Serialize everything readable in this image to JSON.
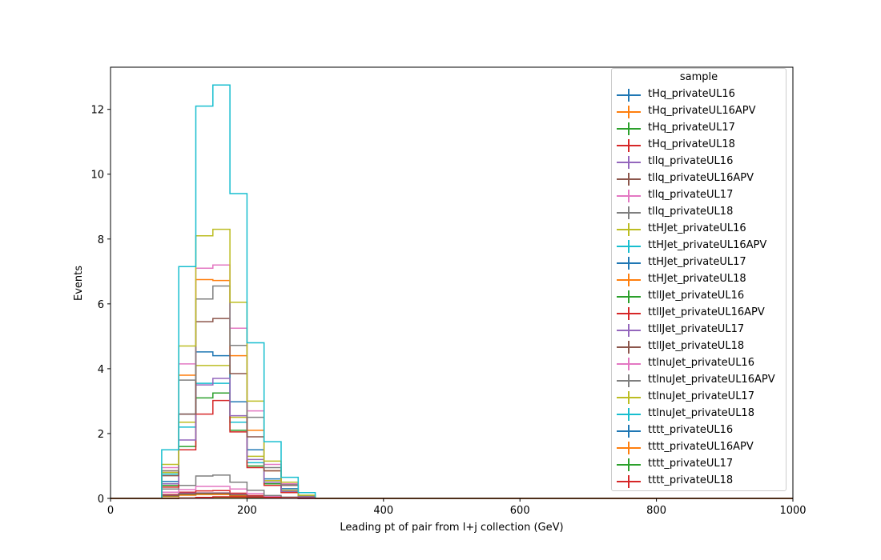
{
  "chart_data": {
    "type": "histogram",
    "xlabel": "Leading pt of pair from l+j collection (GeV)",
    "ylabel": "Events",
    "xlim": [
      0,
      1000
    ],
    "ylim": [
      0,
      13.3
    ],
    "x_ticks": [
      0,
      200,
      400,
      600,
      800,
      1000
    ],
    "y_ticks": [
      0,
      2,
      4,
      6,
      8,
      10,
      12
    ],
    "grid": false,
    "legend": {
      "title": "sample",
      "placement": "top-right"
    },
    "bin_edges": [
      75,
      100,
      125,
      150,
      175,
      200,
      225,
      250,
      275,
      300
    ],
    "series": [
      {
        "name": "tHq_privateUL16",
        "color": "#1f77b4",
        "values": [
          0.07,
          0.11,
          0.13,
          0.13,
          0.09,
          0.05,
          0.03,
          0.01,
          0.0
        ]
      },
      {
        "name": "tHq_privateUL16APV",
        "color": "#ff7f0e",
        "values": [
          0.06,
          0.1,
          0.12,
          0.12,
          0.08,
          0.05,
          0.02,
          0.01,
          0.0
        ]
      },
      {
        "name": "tHq_privateUL17",
        "color": "#2ca02c",
        "values": [
          0.08,
          0.13,
          0.15,
          0.16,
          0.11,
          0.06,
          0.03,
          0.01,
          0.0
        ]
      },
      {
        "name": "tHq_privateUL18",
        "color": "#d62728",
        "values": [
          0.12,
          0.19,
          0.23,
          0.24,
          0.16,
          0.09,
          0.04,
          0.02,
          0.0
        ]
      },
      {
        "name": "tllq_privateUL16",
        "color": "#9467bd",
        "values": [
          0.1,
          0.16,
          0.17,
          0.17,
          0.12,
          0.06,
          0.03,
          0.01,
          0.0
        ]
      },
      {
        "name": "tllq_privateUL16APV",
        "color": "#8c564b",
        "values": [
          0.09,
          0.14,
          0.16,
          0.16,
          0.11,
          0.06,
          0.03,
          0.01,
          0.0
        ]
      },
      {
        "name": "tllq_privateUL17",
        "color": "#e377c2",
        "values": [
          0.19,
          0.27,
          0.37,
          0.37,
          0.29,
          0.15,
          0.06,
          0.02,
          0.0
        ]
      },
      {
        "name": "tllq_privateUL18",
        "color": "#7f7f7f",
        "values": [
          0.29,
          0.4,
          0.69,
          0.72,
          0.5,
          0.25,
          0.09,
          0.04,
          0.01
        ]
      },
      {
        "name": "ttHJet_privateUL16",
        "color": "#bcbd22",
        "values": [
          0.8,
          2.35,
          4.1,
          4.1,
          2.5,
          1.3,
          0.55,
          0.25,
          0.05
        ]
      },
      {
        "name": "ttHJet_privateUL16APV",
        "color": "#17becf",
        "values": [
          0.75,
          2.2,
          3.55,
          3.55,
          2.35,
          1.1,
          0.45,
          0.2,
          0.04
        ]
      },
      {
        "name": "ttHJet_privateUL17",
        "color": "#1f77b4",
        "values": [
          0.52,
          2.6,
          4.52,
          4.4,
          2.98,
          1.5,
          0.6,
          0.3,
          0.06
        ]
      },
      {
        "name": "ttHJet_privateUL18",
        "color": "#ff7f0e",
        "values": [
          0.85,
          3.8,
          6.75,
          6.72,
          4.4,
          2.1,
          0.85,
          0.4,
          0.08
        ]
      },
      {
        "name": "ttllJet_privateUL16",
        "color": "#2ca02c",
        "values": [
          0.4,
          1.6,
          3.1,
          3.25,
          2.1,
          1.0,
          0.45,
          0.2,
          0.04
        ]
      },
      {
        "name": "ttllJet_privateUL16APV",
        "color": "#d62728",
        "values": [
          0.35,
          1.5,
          2.6,
          3.02,
          2.05,
          0.95,
          0.4,
          0.18,
          0.03
        ]
      },
      {
        "name": "ttllJet_privateUL17",
        "color": "#9467bd",
        "values": [
          0.45,
          1.8,
          3.5,
          3.7,
          2.55,
          1.2,
          0.5,
          0.22,
          0.05
        ]
      },
      {
        "name": "ttllJet_privateUL18",
        "color": "#8c564b",
        "values": [
          0.7,
          2.6,
          5.45,
          5.55,
          3.85,
          1.9,
          0.85,
          0.4,
          0.08
        ]
      },
      {
        "name": "ttlnuJet_privateUL16",
        "color": "#e377c2",
        "values": [
          0.95,
          4.15,
          7.1,
          7.2,
          5.25,
          2.7,
          1.05,
          0.45,
          0.09
        ]
      },
      {
        "name": "ttlnuJet_privateUL16APV",
        "color": "#7f7f7f",
        "values": [
          0.85,
          3.65,
          6.15,
          6.55,
          4.72,
          2.5,
          0.95,
          0.42,
          0.08
        ]
      },
      {
        "name": "ttlnuJet_privateUL17",
        "color": "#bcbd22",
        "values": [
          1.05,
          4.7,
          8.1,
          8.3,
          6.05,
          3.0,
          1.15,
          0.5,
          0.1
        ]
      },
      {
        "name": "ttlnuJet_privateUL18",
        "color": "#17becf",
        "values": [
          1.5,
          7.15,
          12.1,
          12.75,
          9.4,
          4.8,
          1.75,
          0.65,
          0.18
        ]
      },
      {
        "name": "tttt_privateUL16",
        "color": "#1f77b4",
        "values": [
          0.0,
          0.01,
          0.02,
          0.03,
          0.03,
          0.03,
          0.02,
          0.01,
          0.01
        ]
      },
      {
        "name": "tttt_privateUL16APV",
        "color": "#ff7f0e",
        "values": [
          0.0,
          0.01,
          0.02,
          0.03,
          0.03,
          0.03,
          0.02,
          0.01,
          0.01
        ]
      },
      {
        "name": "tttt_privateUL17",
        "color": "#2ca02c",
        "values": [
          0.0,
          0.01,
          0.03,
          0.04,
          0.04,
          0.03,
          0.02,
          0.01,
          0.01
        ]
      },
      {
        "name": "tttt_privateUL18",
        "color": "#d62728",
        "values": [
          0.0,
          0.01,
          0.03,
          0.05,
          0.05,
          0.04,
          0.03,
          0.02,
          0.01
        ]
      }
    ]
  }
}
